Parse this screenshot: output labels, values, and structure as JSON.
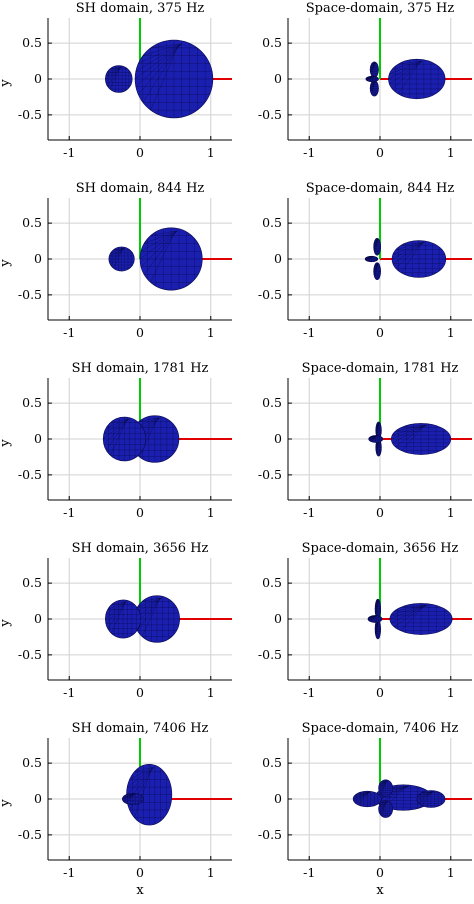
{
  "chart_data": {
    "type": "scatter",
    "rows": 5,
    "cols": 2,
    "xticks": [
      "-1",
      "0",
      "1"
    ],
    "yticks": [
      "0.5",
      "0",
      "-0.5"
    ],
    "xlabel": "x",
    "ylabel": "y",
    "xlim": [
      -1.3,
      1.3
    ],
    "ylim": [
      -0.85,
      0.85
    ],
    "grid": true,
    "axis_line_colors": {
      "x": "#e00000",
      "y": "#00cc00"
    },
    "surface_color": "#1a1fb0",
    "panels": [
      {
        "title": "SH domain, 375 Hz",
        "domain": "SH",
        "freq_hz": 375
      },
      {
        "title": "Space-domain, 375 Hz",
        "domain": "space",
        "freq_hz": 375
      },
      {
        "title": "SH domain, 844 Hz",
        "domain": "SH",
        "freq_hz": 844
      },
      {
        "title": "Space-domain, 844 Hz",
        "domain": "space",
        "freq_hz": 844
      },
      {
        "title": "SH domain, 1781 Hz",
        "domain": "SH",
        "freq_hz": 1781
      },
      {
        "title": "Space-domain, 1781 Hz",
        "domain": "space",
        "freq_hz": 1781
      },
      {
        "title": "SH domain, 3656 Hz",
        "domain": "SH",
        "freq_hz": 3656
      },
      {
        "title": "Space-domain, 3656 Hz",
        "domain": "space",
        "freq_hz": 3656
      },
      {
        "title": "SH domain, 7406 Hz",
        "domain": "SH",
        "freq_hz": 7406
      },
      {
        "title": "Space-domain, 7406 Hz",
        "domain": "space",
        "freq_hz": 7406
      }
    ]
  }
}
